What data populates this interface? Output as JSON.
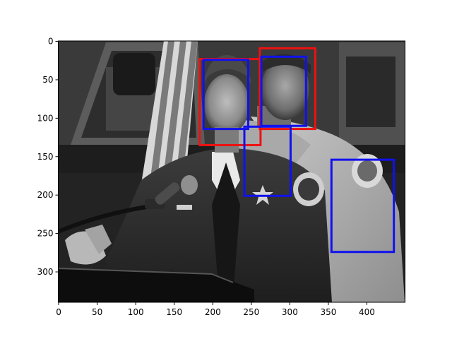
{
  "chart_data": {
    "type": "image",
    "image_extent": {
      "x": [
        0,
        450
      ],
      "y": [
        0,
        340
      ]
    },
    "xlim": [
      -0.5,
      449.5
    ],
    "ylim": [
      339.5,
      -0.5
    ],
    "x_ticks": [
      0,
      50,
      100,
      150,
      200,
      250,
      300,
      350,
      400
    ],
    "y_ticks": [
      0,
      50,
      100,
      150,
      200,
      250,
      300
    ],
    "boxes": [
      {
        "color": "#ee1111",
        "x0": 183,
        "y0": 23,
        "x1": 262,
        "y1": 135
      },
      {
        "color": "#ee1111",
        "x0": 261,
        "y0": 9,
        "x1": 333,
        "y1": 114
      },
      {
        "color": "#1111ee",
        "x0": 188,
        "y0": 24,
        "x1": 246,
        "y1": 114
      },
      {
        "color": "#1111ee",
        "x0": 263,
        "y0": 20,
        "x1": 321,
        "y1": 110
      },
      {
        "color": "#1111ee",
        "x0": 241,
        "y0": 111,
        "x1": 301,
        "y1": 201
      },
      {
        "color": "#1111ee",
        "x0": 354,
        "y0": 154,
        "x1": 435,
        "y1": 274
      }
    ]
  }
}
